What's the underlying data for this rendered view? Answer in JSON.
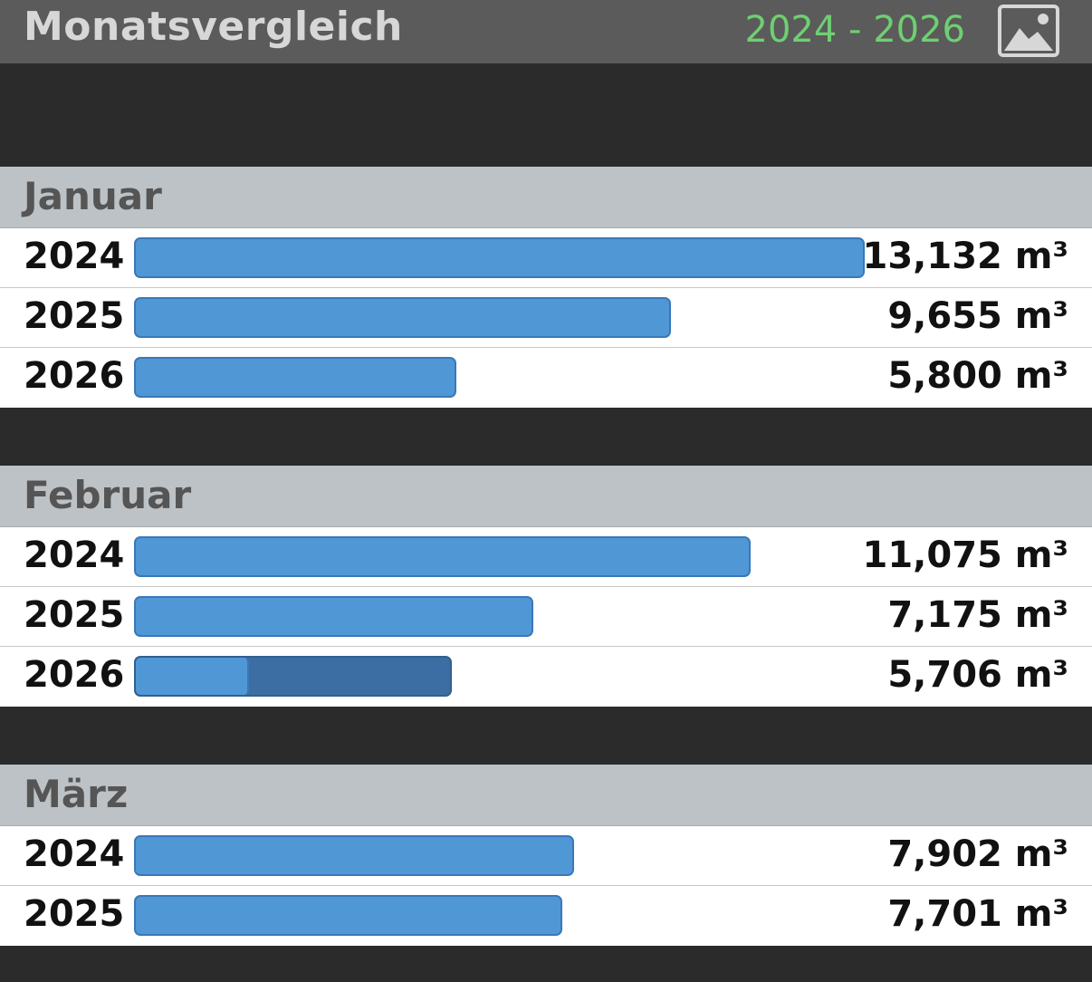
{
  "header": {
    "title": "Monatsvergleich",
    "year_range": "2024 - 2026",
    "image_icon": "image-icon"
  },
  "chart_data": {
    "type": "bar",
    "orientation": "horizontal",
    "unit": "m³",
    "max_value": 13.132,
    "groups": [
      {
        "name": "Januar",
        "rows": [
          {
            "year": "2024",
            "value": 13.132,
            "label": "13,132 m³"
          },
          {
            "year": "2025",
            "value": 9.655,
            "label": "9,655 m³"
          },
          {
            "year": "2026",
            "value": 5.8,
            "label": "5,800 m³"
          }
        ]
      },
      {
        "name": "Februar",
        "rows": [
          {
            "year": "2024",
            "value": 11.075,
            "label": "11,075 m³"
          },
          {
            "year": "2025",
            "value": 7.175,
            "label": "7,175 m³"
          },
          {
            "year": "2026",
            "value": 5.706,
            "label": "5,706 m³",
            "partial_fraction": 0.36
          }
        ]
      },
      {
        "name": "März",
        "rows": [
          {
            "year": "2024",
            "value": 7.902,
            "label": "7,902 m³"
          },
          {
            "year": "2025",
            "value": 7.701,
            "label": "7,701 m³"
          }
        ]
      }
    ],
    "colors": {
      "bar": "#5097d6",
      "bar_border": "#3a78b8",
      "bar_remaining": "#3d6ea3",
      "year_range": "#6fcf72"
    }
  }
}
